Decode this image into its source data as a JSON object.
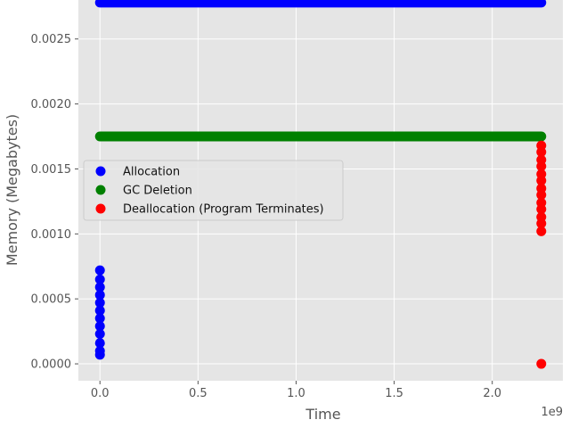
{
  "chart_data": {
    "type": "scatter",
    "xlabel": "Time",
    "ylabel": "Memory (Megabytes)",
    "x_offset_text": "1e9",
    "xlim": [
      -0.11,
      2.36
    ],
    "ylim": [
      -0.00013,
      0.0028
    ],
    "x_ticks": [
      0.0,
      0.5,
      1.0,
      1.5,
      2.0
    ],
    "x_tick_labels": [
      "0.0",
      "0.5",
      "1.0",
      "1.5",
      "2.0"
    ],
    "y_ticks": [
      0.0,
      0.0005,
      0.001,
      0.0015,
      0.002,
      0.0025
    ],
    "y_tick_labels": [
      "0.0000",
      "0.0005",
      "0.0010",
      "0.0015",
      "0.0020",
      "0.0025"
    ],
    "grid": true,
    "background": "#e5e5e5",
    "legend_position": "center-left",
    "series": [
      {
        "name": "Allocation",
        "color": "#0000ff",
        "points": [
          [
            0.0,
            7e-05
          ],
          [
            0.0,
            0.0001
          ],
          [
            0.0,
            0.00016
          ],
          [
            0.0,
            0.00023
          ],
          [
            0.0,
            0.00029
          ],
          [
            0.0,
            0.00035
          ],
          [
            0.0,
            0.00041
          ],
          [
            0.0,
            0.00047
          ],
          [
            0.0,
            0.00053
          ],
          [
            0.0,
            0.00059
          ],
          [
            0.0,
            0.00065
          ],
          [
            0.0,
            0.00072
          ]
        ],
        "line_segments": [
          {
            "y": 0.00278,
            "x_start": 0.0,
            "x_end": 2.25
          }
        ]
      },
      {
        "name": "GC Deletion",
        "color": "#008000",
        "points": [],
        "line_segments": [
          {
            "y": 0.00175,
            "x_start": 0.0,
            "x_end": 2.25
          }
        ]
      },
      {
        "name": "Deallocation (Program Terminates)",
        "color": "#ff0000",
        "points": [
          [
            2.25,
            0.0
          ],
          [
            2.25,
            0.00102
          ],
          [
            2.25,
            0.00108
          ],
          [
            2.25,
            0.00113
          ],
          [
            2.25,
            0.00119
          ],
          [
            2.25,
            0.00124
          ],
          [
            2.25,
            0.0013
          ],
          [
            2.25,
            0.00135
          ],
          [
            2.25,
            0.00141
          ],
          [
            2.25,
            0.00146
          ],
          [
            2.25,
            0.00152
          ],
          [
            2.25,
            0.00157
          ],
          [
            2.25,
            0.00163
          ],
          [
            2.25,
            0.00168
          ]
        ],
        "line_segments": []
      }
    ]
  }
}
